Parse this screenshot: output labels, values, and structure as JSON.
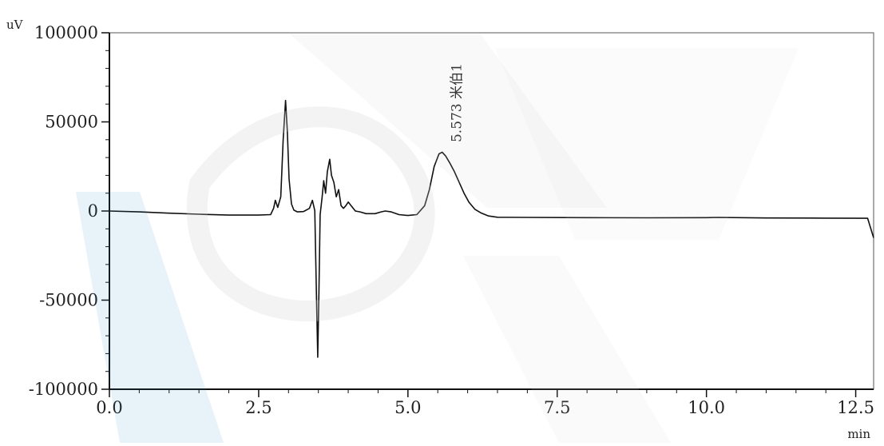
{
  "chart_data": {
    "type": "line",
    "title": "",
    "ylabel": "uV",
    "xlabel": "min",
    "xlim": [
      0,
      12.8
    ],
    "ylim": [
      -100000,
      100000
    ],
    "x_ticks": [
      {
        "value": 0,
        "label": "0.0"
      },
      {
        "value": 2.5,
        "label": "2.5"
      },
      {
        "value": 5,
        "label": "5.0"
      },
      {
        "value": 7.5,
        "label": "7.5"
      },
      {
        "value": 10,
        "label": "10.0"
      },
      {
        "value": 12.5,
        "label": "12.5"
      }
    ],
    "y_ticks": [
      {
        "value": 100000,
        "label": "100000"
      },
      {
        "value": 50000,
        "label": "50000"
      },
      {
        "value": 0,
        "label": "0"
      },
      {
        "value": -50000,
        "label": "-50000"
      },
      {
        "value": -100000,
        "label": "-100000"
      }
    ],
    "grid": false,
    "series": [
      {
        "x": [
          0.0,
          0.5,
          1.0,
          1.5,
          2.0,
          2.5,
          2.7,
          2.75,
          2.78,
          2.82,
          2.87,
          2.91,
          2.95,
          2.98,
          3.01,
          3.05,
          3.09,
          3.15,
          3.25,
          3.35,
          3.4,
          3.44,
          3.47,
          3.49,
          3.51,
          3.53,
          3.56,
          3.59,
          3.62,
          3.65,
          3.69,
          3.72,
          3.76,
          3.8,
          3.84,
          3.88,
          3.92,
          3.96,
          4.0,
          4.06,
          4.12,
          4.2,
          4.3,
          4.45,
          4.55,
          4.62,
          4.72,
          4.85,
          5.0,
          5.15,
          5.28,
          5.36,
          5.44,
          5.52,
          5.573,
          5.63,
          5.7,
          5.78,
          5.86,
          5.94,
          6.02,
          6.12,
          6.22,
          6.35,
          6.5,
          7.0,
          8.0,
          9.0,
          10.0,
          10.2,
          11.0,
          12.0,
          12.7,
          12.8
        ],
        "y": [
          0,
          -500,
          -1200,
          -1800,
          -2300,
          -2300,
          -2000,
          1500,
          6000,
          2000,
          8000,
          40000,
          62000,
          45000,
          18000,
          4000,
          500,
          -500,
          -300,
          1500,
          6000,
          200,
          -50000,
          -82000,
          -45000,
          -2000,
          7000,
          17000,
          10000,
          22000,
          29000,
          20000,
          16000,
          8000,
          12000,
          3000,
          1500,
          3000,
          5000,
          2500,
          0,
          -500,
          -1500,
          -1500,
          -500,
          0,
          -500,
          -2000,
          -2500,
          -2000,
          3000,
          12000,
          25000,
          32000,
          33000,
          31000,
          27000,
          22000,
          16000,
          10000,
          5000,
          1000,
          -1000,
          -2800,
          -3500,
          -3600,
          -3700,
          -3800,
          -3700,
          -3600,
          -3900,
          -4000,
          -4100,
          -15000
        ]
      }
    ],
    "annotations": [
      {
        "x": 5.573,
        "label": "5.573 米伯1"
      }
    ]
  }
}
